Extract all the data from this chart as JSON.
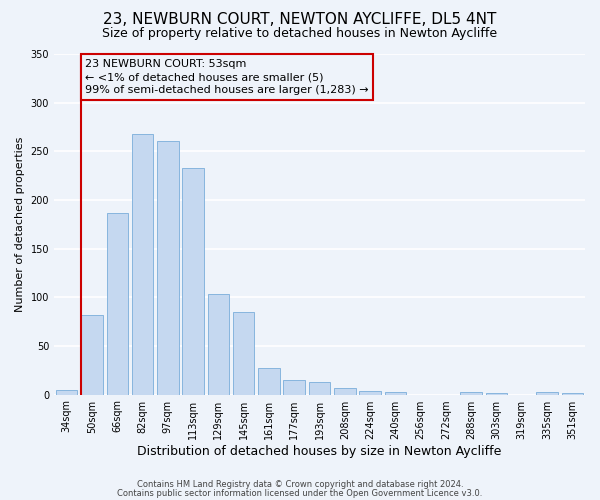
{
  "title": "23, NEWBURN COURT, NEWTON AYCLIFFE, DL5 4NT",
  "subtitle": "Size of property relative to detached houses in Newton Aycliffe",
  "xlabel": "Distribution of detached houses by size in Newton Aycliffe",
  "ylabel": "Number of detached properties",
  "bin_labels": [
    "34sqm",
    "50sqm",
    "66sqm",
    "82sqm",
    "97sqm",
    "113sqm",
    "129sqm",
    "145sqm",
    "161sqm",
    "177sqm",
    "193sqm",
    "208sqm",
    "224sqm",
    "240sqm",
    "256sqm",
    "272sqm",
    "288sqm",
    "303sqm",
    "319sqm",
    "335sqm",
    "351sqm"
  ],
  "bar_heights": [
    5,
    82,
    187,
    268,
    261,
    233,
    103,
    85,
    27,
    15,
    13,
    7,
    4,
    3,
    0,
    0,
    3,
    2,
    0,
    3,
    2
  ],
  "bar_color": "#c5d8f0",
  "bar_edgecolor": "#7aadda",
  "annotation_line1": "23 NEWBURN COURT: 53sqm",
  "annotation_line2": "← <1% of detached houses are smaller (5)",
  "annotation_line3": "99% of semi-detached houses are larger (1,283) →",
  "vline_color": "#cc0000",
  "annotation_box_edgecolor": "#cc0000",
  "ylim": [
    0,
    350
  ],
  "footer_line1": "Contains HM Land Registry data © Crown copyright and database right 2024.",
  "footer_line2": "Contains public sector information licensed under the Open Government Licence v3.0.",
  "background_color": "#eef3fa",
  "grid_color": "#ffffff",
  "title_fontsize": 11,
  "subtitle_fontsize": 9,
  "ylabel_fontsize": 8,
  "xlabel_fontsize": 9,
  "tick_fontsize": 7,
  "annotation_fontsize": 8,
  "footer_fontsize": 6
}
